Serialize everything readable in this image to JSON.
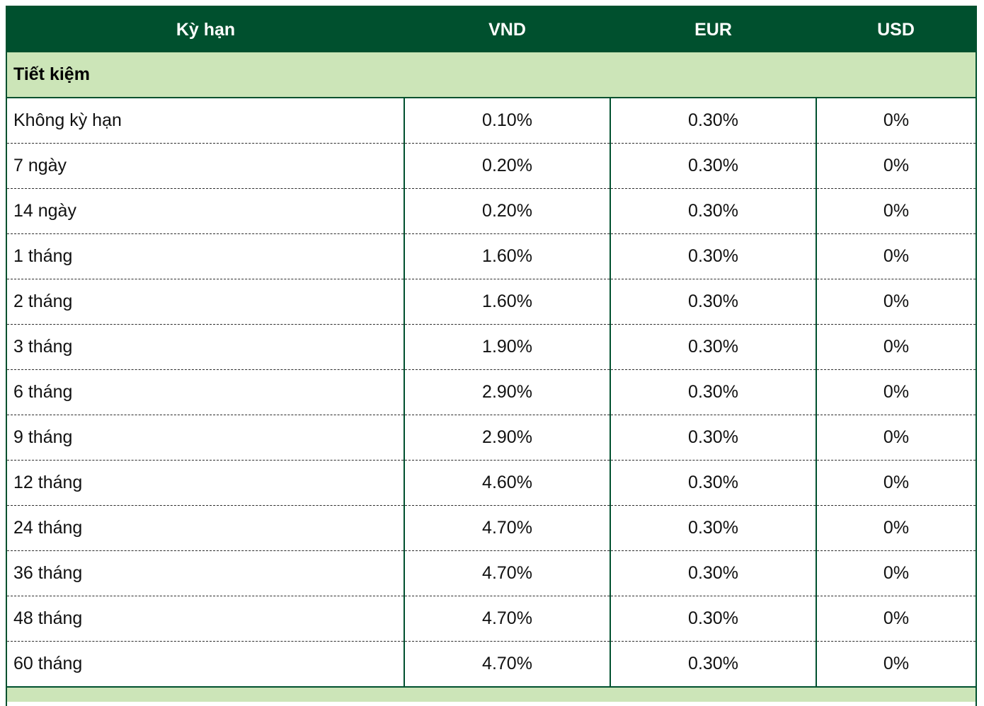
{
  "header": {
    "term": "Kỳ hạn",
    "vnd": "VND",
    "eur": "EUR",
    "usd": "USD"
  },
  "section": {
    "title": "Tiết kiệm"
  },
  "rows": [
    {
      "term": "Không kỳ hạn",
      "vnd": "0.10%",
      "eur": "0.30%",
      "usd": "0%"
    },
    {
      "term": "7 ngày",
      "vnd": "0.20%",
      "eur": "0.30%",
      "usd": "0%"
    },
    {
      "term": "14 ngày",
      "vnd": "0.20%",
      "eur": "0.30%",
      "usd": "0%"
    },
    {
      "term": "1 tháng",
      "vnd": "1.60%",
      "eur": "0.30%",
      "usd": "0%"
    },
    {
      "term": "2 tháng",
      "vnd": "1.60%",
      "eur": "0.30%",
      "usd": "0%"
    },
    {
      "term": "3 tháng",
      "vnd": "1.90%",
      "eur": "0.30%",
      "usd": "0%"
    },
    {
      "term": "6 tháng",
      "vnd": "2.90%",
      "eur": "0.30%",
      "usd": "0%"
    },
    {
      "term": "9 tháng",
      "vnd": "2.90%",
      "eur": "0.30%",
      "usd": "0%"
    },
    {
      "term": "12 tháng",
      "vnd": "4.60%",
      "eur": "0.30%",
      "usd": "0%"
    },
    {
      "term": "24 tháng",
      "vnd": "4.70%",
      "eur": "0.30%",
      "usd": "0%"
    },
    {
      "term": "36 tháng",
      "vnd": "4.70%",
      "eur": "0.30%",
      "usd": "0%"
    },
    {
      "term": "48 tháng",
      "vnd": "4.70%",
      "eur": "0.30%",
      "usd": "0%"
    },
    {
      "term": "60 tháng",
      "vnd": "4.70%",
      "eur": "0.30%",
      "usd": "0%"
    }
  ],
  "colors": {
    "header_bg": "#00502e",
    "section_bg": "#cce5b8"
  }
}
